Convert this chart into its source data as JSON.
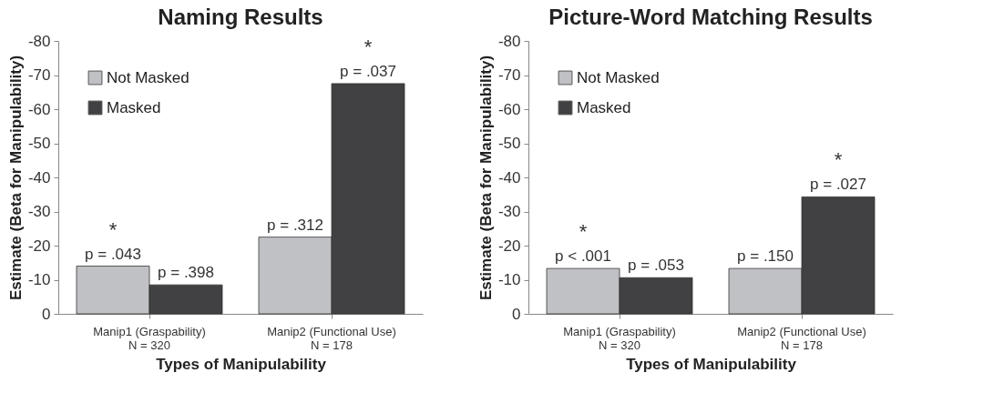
{
  "chart_data": [
    {
      "type": "bar",
      "title": "Naming Results",
      "xlabel": "Types of Manipulability",
      "ylabel": "Estimate (Beta for Manipulability)",
      "categories": [
        "Manip1 (Graspability)\nN = 320",
        "Manip2 (Functional Use)\nN = 178"
      ],
      "series": [
        {
          "name": "Not Masked",
          "color": "#c0c1c4",
          "values": [
            -14,
            -22.5
          ]
        },
        {
          "name": "Masked",
          "color": "#414143",
          "values": [
            -8.5,
            -67.5
          ]
        }
      ],
      "ylim": [
        0,
        -80
      ],
      "yticks": [
        0,
        -10,
        -20,
        -30,
        -40,
        -50,
        -60,
        -70,
        -80
      ],
      "grid": false,
      "legend": "top left",
      "annotations": [
        {
          "text": "p = .043",
          "x": "Manip1 (Graspability)\nN = 320",
          "y": -14
        },
        {
          "text": "*",
          "x": "Manip1 (Graspability)\nN = 320",
          "y": -14
        },
        {
          "text": "p = .398",
          "x": "Manip1 (Graspability)\nN = 320",
          "y": -8.5
        },
        {
          "text": "p = .312",
          "x": "Manip2 (Functional Use)\nN = 178",
          "y": -22.5
        },
        {
          "text": "p = .037",
          "x": "Manip2 (Functional Use)\nN = 178",
          "y": -67.5
        },
        {
          "text": "*",
          "x": "Manip2 (Functional Use)\nN = 178",
          "y": -67.5
        }
      ]
    },
    {
      "type": "bar",
      "title": "Picture-Word Matching Results",
      "xlabel": "Types of Manipulability",
      "ylabel": "Estimate (Beta for Manipulability)",
      "categories": [
        "Manip1 (Graspability)\nN = 320",
        "Manip2 (Functional Use)\nN = 178"
      ],
      "series": [
        {
          "name": "Not Masked",
          "color": "#c0c1c4",
          "values": [
            -13.3,
            -13.3
          ]
        },
        {
          "name": "Masked",
          "color": "#414143",
          "values": [
            -10.6,
            -34.3
          ]
        }
      ],
      "ylim": [
        0,
        -80
      ],
      "yticks": [
        0,
        -10,
        -20,
        -30,
        -40,
        -50,
        -60,
        -70,
        -80
      ],
      "grid": false,
      "legend": "top left",
      "annotations": [
        {
          "text": "p < .001",
          "x": "Manip1 (Graspability)\nN = 320",
          "y": -13.3
        },
        {
          "text": "*",
          "x": "Manip1 (Graspability)\nN = 320",
          "y": -13.3
        },
        {
          "text": "p = .053",
          "x": "Manip1 (Graspability)\nN = 320",
          "y": -10.6
        },
        {
          "text": "p = .150",
          "x": "Manip2 (Functional Use)\nN = 178",
          "y": -13.3
        },
        {
          "text": "p = .027",
          "x": "Manip2 (Functional Use)\nN = 178",
          "y": -34.3
        },
        {
          "text": "*",
          "x": "Manip2 (Functional Use)\nN = 178",
          "y": -34.3
        }
      ]
    }
  ]
}
